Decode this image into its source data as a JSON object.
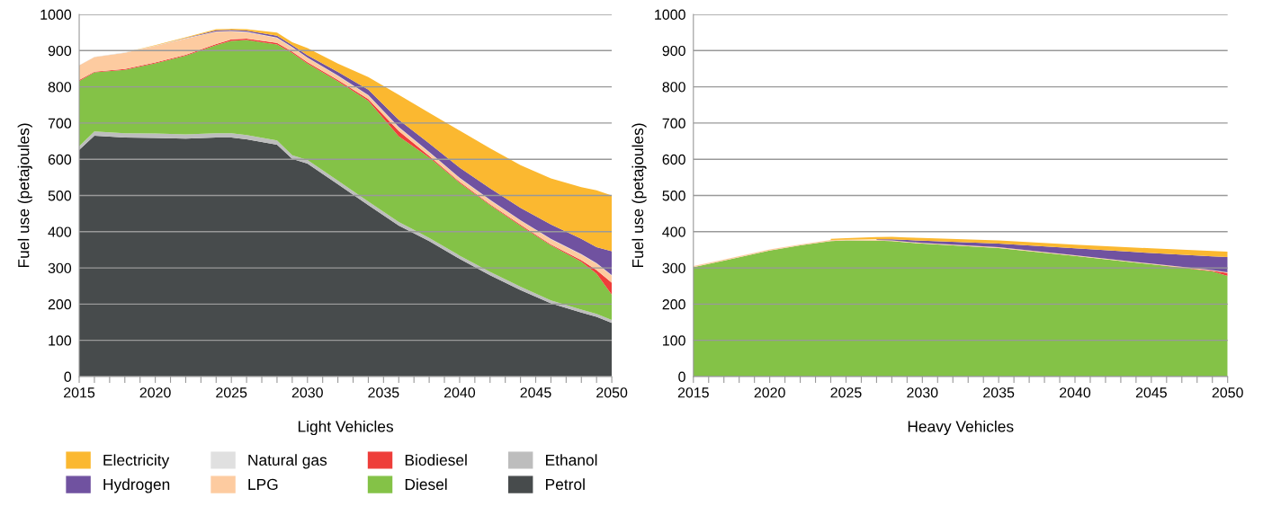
{
  "chart_data": [
    {
      "type": "area",
      "stacked": true,
      "xlabel": "Light Vehicles",
      "ylabel": "Fuel use (petajoules)",
      "legend": "bottom",
      "grid": "y",
      "ylim": [
        0,
        1000
      ],
      "yticks": [
        0,
        100,
        200,
        300,
        400,
        500,
        600,
        700,
        800,
        900,
        1000
      ],
      "xlim": [
        2015,
        2050
      ],
      "xticks": [
        2015,
        {
          "value": 2016,
          "label": null
        },
        {
          "value": 2017,
          "label": null
        },
        {
          "value": 2018,
          "label": null
        },
        {
          "value": 2019,
          "label": null
        },
        2020,
        {
          "value": 2021,
          "label": null
        },
        {
          "value": 2022,
          "label": null
        },
        {
          "value": 2023,
          "label": null
        },
        {
          "value": 2024,
          "label": null
        },
        2025,
        {
          "value": 2026,
          "label": null
        },
        {
          "value": 2027,
          "label": null
        },
        {
          "value": 2028,
          "label": null
        },
        {
          "value": 2029,
          "label": null
        },
        2030,
        {
          "value": 2031,
          "label": null
        },
        {
          "value": 2032,
          "label": null
        },
        {
          "value": 2033,
          "label": null
        },
        {
          "value": 2034,
          "label": null
        },
        2035,
        {
          "value": 2036,
          "label": null
        },
        {
          "value": 2037,
          "label": null
        },
        {
          "value": 2038,
          "label": null
        },
        {
          "value": 2039,
          "label": null
        },
        2040,
        {
          "value": 2041,
          "label": null
        },
        {
          "value": 2042,
          "label": null
        },
        {
          "value": 2043,
          "label": null
        },
        {
          "value": 2044,
          "label": null
        },
        2045,
        {
          "value": 2046,
          "label": null
        },
        {
          "value": 2047,
          "label": null
        },
        {
          "value": 2048,
          "label": null
        },
        {
          "value": 2049,
          "label": null
        },
        2050
      ],
      "x": [
        2015,
        2016,
        2018,
        2020,
        2022,
        2024,
        2025,
        2026,
        2028,
        2029,
        2030,
        2032,
        2034,
        2036,
        2038,
        2040,
        2042,
        2044,
        2046,
        2048,
        2049,
        2050
      ],
      "series": [
        {
          "name": "Petrol",
          "color": "#474b4c",
          "values": [
            626,
            665,
            660,
            659,
            657,
            660,
            660,
            655,
            640,
            601,
            588,
            531,
            473,
            417,
            374,
            325,
            280,
            239,
            202,
            177,
            165,
            148
          ]
        },
        {
          "name": "Ethanol",
          "color": "#bdbdbd",
          "values": [
            10,
            12,
            12,
            12,
            12,
            12,
            12,
            12,
            12,
            10,
            10,
            10,
            10,
            10,
            9,
            9,
            9,
            9,
            8,
            8,
            8,
            8
          ]
        },
        {
          "name": "Diesel",
          "color": "#84c247",
          "values": [
            180,
            163,
            175,
            194,
            217,
            243,
            255,
            262,
            265,
            282,
            266,
            274,
            278,
            236,
            222,
            201,
            184,
            168,
            152,
            132,
            111,
            70
          ]
        },
        {
          "name": "Biodiesel",
          "color": "#ee3e3a",
          "values": [
            3,
            2,
            2,
            2,
            2,
            3,
            4,
            4,
            4,
            4,
            4,
            4,
            5,
            15,
            4,
            3,
            3,
            3,
            3,
            4,
            10,
            33
          ]
        },
        {
          "name": "LPG",
          "color": "#fdcba0",
          "values": [
            40,
            40,
            45,
            46,
            45,
            34,
            22,
            18,
            14,
            12,
            12,
            11,
            10,
            10,
            10,
            10,
            11,
            12,
            14,
            16,
            18,
            20
          ]
        },
        {
          "name": "Natural gas",
          "color": "#e0e0e0",
          "values": [
            1,
            1,
            1,
            1,
            1,
            1,
            1,
            1,
            1,
            1,
            1,
            1,
            1,
            1,
            1,
            1,
            1,
            1,
            1,
            1,
            1,
            1
          ]
        },
        {
          "name": "Hydrogen",
          "color": "#7052a0",
          "values": [
            0,
            0,
            0,
            0,
            1,
            3,
            3,
            3,
            5,
            5,
            6,
            10,
            15,
            20,
            24,
            28,
            32,
            34,
            40,
            42,
            44,
            66
          ]
        },
        {
          "name": "Electricity",
          "color": "#fbb830",
          "values": [
            0,
            0,
            0,
            1,
            2,
            3,
            3,
            4,
            9,
            8,
            20,
            23,
            35,
            69,
            84,
            102,
            110,
            118,
            127,
            143,
            157,
            154
          ]
        }
      ]
    },
    {
      "type": "area",
      "stacked": true,
      "xlabel": "Heavy Vehicles",
      "ylabel": "Fuel use (petajoules)",
      "grid": "y",
      "ylim": [
        0,
        1000
      ],
      "yticks": [
        0,
        100,
        200,
        300,
        400,
        500,
        600,
        700,
        800,
        900,
        1000
      ],
      "xlim": [
        2015,
        2050
      ],
      "xticks": [
        2015,
        {
          "value": 2016,
          "label": null
        },
        {
          "value": 2017,
          "label": null
        },
        {
          "value": 2018,
          "label": null
        },
        {
          "value": 2019,
          "label": null
        },
        2020,
        {
          "value": 2021,
          "label": null
        },
        {
          "value": 2022,
          "label": null
        },
        {
          "value": 2023,
          "label": null
        },
        {
          "value": 2024,
          "label": null
        },
        2025,
        {
          "value": 2026,
          "label": null
        },
        {
          "value": 2027,
          "label": null
        },
        {
          "value": 2028,
          "label": null
        },
        {
          "value": 2029,
          "label": null
        },
        2030,
        {
          "value": 2031,
          "label": null
        },
        {
          "value": 2032,
          "label": null
        },
        {
          "value": 2033,
          "label": null
        },
        {
          "value": 2034,
          "label": null
        },
        2035,
        {
          "value": 2036,
          "label": null
        },
        {
          "value": 2037,
          "label": null
        },
        {
          "value": 2038,
          "label": null
        },
        {
          "value": 2039,
          "label": null
        },
        2040,
        {
          "value": 2041,
          "label": null
        },
        {
          "value": 2042,
          "label": null
        },
        {
          "value": 2043,
          "label": null
        },
        {
          "value": 2044,
          "label": null
        },
        2045,
        {
          "value": 2046,
          "label": null
        },
        {
          "value": 2047,
          "label": null
        },
        {
          "value": 2048,
          "label": null
        },
        {
          "value": 2049,
          "label": null
        },
        2050
      ],
      "x": [
        2015,
        2017,
        2020,
        2022,
        2024,
        2025,
        2027,
        2028,
        2029,
        2030,
        2035,
        2040,
        2045,
        2049,
        2050
      ],
      "series": [
        {
          "color": "#84c247",
          "values": [
            302,
            320,
            348,
            362,
            374,
            376,
            375,
            374,
            370,
            367,
            355,
            333,
            310,
            290,
            278
          ]
        },
        {
          "color": "#ee3e3a",
          "values": [
            0,
            0,
            0,
            0,
            0,
            0,
            0,
            0,
            0,
            0,
            0,
            0,
            0,
            2,
            8
          ]
        },
        {
          "color": "#fdcba0",
          "values": [
            3,
            3,
            3,
            3,
            3,
            2,
            2,
            2,
            2,
            2,
            2,
            2,
            2,
            2,
            2
          ]
        },
        {
          "color": "#7052a0",
          "values": [
            null,
            null,
            null,
            null,
            null,
            null,
            2,
            3,
            5,
            6,
            10,
            19,
            29,
            38,
            42
          ]
        },
        {
          "color": "#fbb830",
          "values": [
            null,
            null,
            null,
            null,
            3,
            4,
            6,
            7,
            7,
            8,
            9,
            10,
            13,
            15,
            15
          ]
        }
      ]
    }
  ]
}
